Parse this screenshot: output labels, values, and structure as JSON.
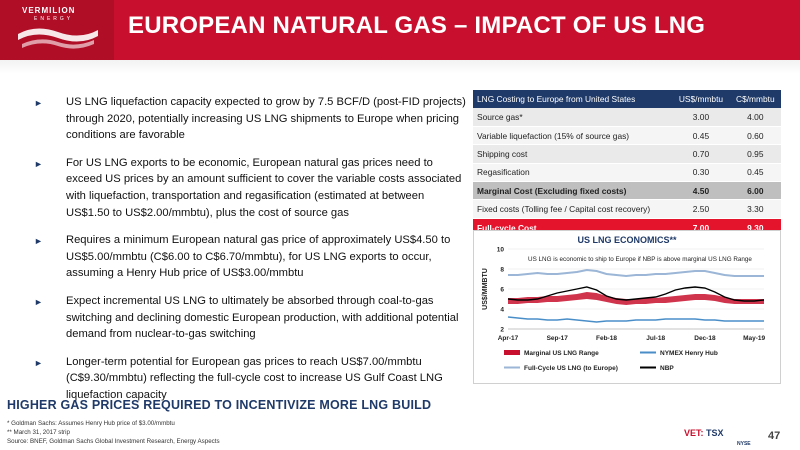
{
  "header": {
    "logo_name": "VERMILION",
    "logo_sub": "ENERGY",
    "title": "EUROPEAN NATURAL GAS – IMPACT OF US LNG"
  },
  "colors": {
    "brand_red": "#c8102e",
    "navy": "#1f3a68"
  },
  "bullets": [
    "US LNG liquefaction capacity expected to grow by 7.5 BCF/D (post-FID projects) through 2020, potentially increasing US LNG shipments to Europe when pricing conditions are favorable",
    "For US LNG exports to be economic, European natural gas prices need to exceed US prices by an amount sufficient to cover the variable costs associated with liquefaction, transportation and regasification (estimated at between US$1.50 to US$2.00/mmbtu), plus the cost of source gas",
    "Requires a minimum European natural gas price of approximately US$4.50 to US$5.00/mmbtu (C$6.00 to C$6.70/mmbtu), for US LNG exports to occur, assuming a Henry Hub price of US$3.00/mmbtu",
    "Expect incremental US LNG to ultimately be absorbed through coal-to-gas switching and declining domestic European production, with additional potential demand from nuclear-to-gas switching",
    "Longer-term potential for European gas prices to reach US$7.00/mmbtu (C$9.30/mmbtu) reflecting the full-cycle cost to increase US Gulf Coast LNG liquefaction capacity"
  ],
  "bullet_marker": "►",
  "table": {
    "headers": [
      "LNG Costing to Europe from United States",
      "US$/mmbtu",
      "C$/mmbtu"
    ],
    "rows": [
      [
        "Source gas*",
        "3.00",
        "4.00"
      ],
      [
        "Variable liquefaction (15% of source gas)",
        "0.45",
        "0.60"
      ],
      [
        "Shipping cost",
        "0.70",
        "0.95"
      ],
      [
        "Regasification",
        "0.30",
        "0.45"
      ],
      [
        "Marginal Cost (Excluding fixed costs)",
        "4.50",
        "6.00"
      ],
      [
        "Fixed costs (Tolling fee / Capital cost recovery)",
        "2.50",
        "3.30"
      ],
      [
        "Full-cycle Cost",
        "7.00",
        "9.30"
      ]
    ]
  },
  "chart_data": {
    "type": "line",
    "title": "US LNG ECONOMICS**",
    "annotation": "US LNG is economic to ship to Europe if NBP is above marginal US LNG Range",
    "ylabel": "US$/MMBTU",
    "xlabel": "",
    "ylim": [
      2,
      10
    ],
    "yticks": [
      "2",
      "4",
      "6",
      "8",
      "10"
    ],
    "xticks": [
      "Apr-17",
      "Sep-17",
      "Feb-18",
      "Jul-18",
      "Dec-18",
      "May-19"
    ],
    "x_index_range": [
      0,
      26
    ],
    "xtick_index": [
      0,
      5,
      10,
      15,
      20,
      25
    ],
    "series": [
      {
        "name": "Marginal US LNG Range",
        "color": "#c8102e",
        "low": [
          4.5,
          4.5,
          4.6,
          4.6,
          4.7,
          4.7,
          4.8,
          4.9,
          5.0,
          4.9,
          4.7,
          4.5,
          4.4,
          4.5,
          4.5,
          4.6,
          4.6,
          4.7,
          4.8,
          4.9,
          4.9,
          4.8,
          4.6,
          4.5,
          4.5,
          4.5,
          4.5
        ],
        "high": [
          5.1,
          5.1,
          5.2,
          5.2,
          5.3,
          5.3,
          5.4,
          5.5,
          5.7,
          5.6,
          5.3,
          5.1,
          5.0,
          5.0,
          5.1,
          5.1,
          5.2,
          5.3,
          5.4,
          5.5,
          5.5,
          5.4,
          5.2,
          5.0,
          5.0,
          5.0,
          5.0
        ]
      },
      {
        "name": "NYMEX Henry Hub",
        "color": "#4a8ec8",
        "values": [
          3.2,
          3.1,
          3.0,
          3.0,
          2.9,
          2.9,
          3.0,
          2.9,
          2.8,
          2.7,
          2.8,
          2.8,
          2.8,
          2.9,
          2.9,
          2.9,
          3.0,
          3.0,
          3.0,
          3.0,
          2.9,
          2.9,
          2.8,
          2.8,
          2.8,
          2.8,
          2.8
        ]
      },
      {
        "name": "Full-Cycle US LNG (to Europe)",
        "color": "#9bb6d6",
        "values": [
          7.4,
          7.4,
          7.5,
          7.6,
          7.5,
          7.5,
          7.6,
          7.7,
          7.9,
          7.8,
          7.5,
          7.4,
          7.3,
          7.4,
          7.4,
          7.5,
          7.5,
          7.6,
          7.7,
          7.8,
          7.8,
          7.6,
          7.4,
          7.3,
          7.3,
          7.3,
          7.3
        ]
      },
      {
        "name": "NBP",
        "color": "#000000",
        "values": [
          5.0,
          4.9,
          4.9,
          5.0,
          5.3,
          5.6,
          5.8,
          6.0,
          6.2,
          5.9,
          5.3,
          5.0,
          4.9,
          5.0,
          5.1,
          5.2,
          5.5,
          5.9,
          6.1,
          6.2,
          6.1,
          5.7,
          5.2,
          4.9,
          4.8,
          4.8,
          4.9
        ]
      }
    ],
    "legend_position": "bottom"
  },
  "tagline": "HIGHER GAS PRICES REQUIRED TO INCENTIVIZE MORE LNG BUILD",
  "footnotes": [
    "* Goldman Sachs: Assumes Henry Hub price of $3.00/mmbtu",
    "** March 31, 2017 strip",
    "Source: BNEF, Goldman Sachs Global Investment Research, Energy Aspects"
  ],
  "exchange": {
    "ticker": "VET:",
    "tsx": "TSX",
    "nyse": "NYSE"
  },
  "page_number": "47"
}
